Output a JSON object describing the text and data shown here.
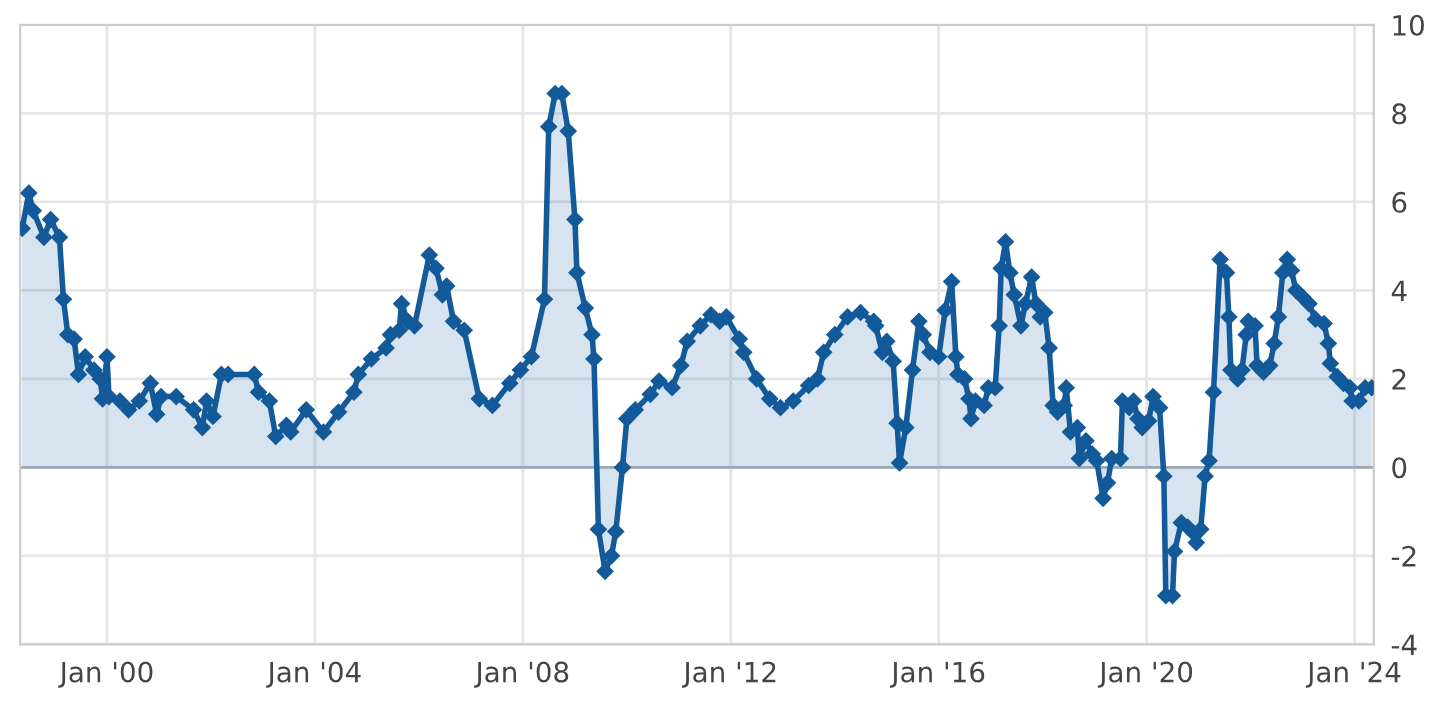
{
  "chart_data": {
    "type": "area",
    "marker": "diamond",
    "line_style": "solid",
    "grid": true,
    "xlim": [
      "1998-05-01",
      "2024-05-15"
    ],
    "ylim": [
      -4,
      10
    ],
    "xticks": [
      {
        "value": "2000-01-01",
        "label": "Jan '00"
      },
      {
        "value": "2004-01-01",
        "label": "Jan '04"
      },
      {
        "value": "2008-01-01",
        "label": "Jan '08"
      },
      {
        "value": "2012-01-01",
        "label": "Jan '12"
      },
      {
        "value": "2016-01-01",
        "label": "Jan '16"
      },
      {
        "value": "2020-01-01",
        "label": "Jan '20"
      },
      {
        "value": "2024-01-01",
        "label": "Jan '24"
      }
    ],
    "yticks": [
      -4,
      -2,
      0,
      2,
      4,
      6,
      8,
      10
    ],
    "ref_lines": [
      {
        "axis": "y",
        "value": 0,
        "color": "#9aa7b4"
      }
    ],
    "series": [
      {
        "color": "#135a9a",
        "x": [
          "1998-05-15",
          "1998-07-01",
          "1998-08-01",
          "1998-10-15",
          "1998-12-01",
          "1999-02-01",
          "1999-03-01",
          "1999-04-01",
          "1999-05-15",
          "1999-06-15",
          "1999-08-01",
          "1999-10-01",
          "1999-11-15",
          "1999-12-01",
          "2000-01-01",
          "2000-01-15",
          "2000-04-01",
          "2000-06-01",
          "2000-08-15",
          "2000-11-01",
          "2000-12-15",
          "2001-01-15",
          "2001-05-01",
          "2001-09-01",
          "2001-11-01",
          "2001-12-01",
          "2002-01-15",
          "2002-03-15",
          "2002-05-01",
          "2002-11-01",
          "2002-12-01",
          "2003-02-15",
          "2003-04-01",
          "2003-06-15",
          "2003-07-15",
          "2003-11-01",
          "2004-03-01",
          "2004-06-15",
          "2004-10-01",
          "2004-11-01",
          "2005-02-01",
          "2005-05-15",
          "2005-06-15",
          "2005-08-15",
          "2005-09-01",
          "2005-10-15",
          "2005-12-01",
          "2006-03-15",
          "2006-05-01",
          "2006-06-15",
          "2006-07-15",
          "2006-09-01",
          "2006-11-15",
          "2007-03-01",
          "2007-06-01",
          "2007-10-01",
          "2007-12-15",
          "2008-03-01",
          "2008-06-01",
          "2008-07-01",
          "2008-08-15",
          "2008-10-01",
          "2008-11-15",
          "2009-01-01",
          "2009-01-15",
          "2009-03-15",
          "2009-05-01",
          "2009-05-15",
          "2009-06-15",
          "2009-08-01",
          "2009-09-15",
          "2009-10-15",
          "2009-12-01",
          "2010-01-01",
          "2010-03-01",
          "2010-06-15",
          "2010-08-15",
          "2010-11-15",
          "2011-01-15",
          "2011-03-01",
          "2011-06-01",
          "2011-08-15",
          "2011-10-15",
          "2011-12-01",
          "2012-03-01",
          "2012-04-01",
          "2012-07-01",
          "2012-10-01",
          "2012-12-15",
          "2013-03-15",
          "2013-07-01",
          "2013-09-01",
          "2013-10-15",
          "2014-01-01",
          "2014-04-01",
          "2014-07-01",
          "2014-10-01",
          "2014-10-15",
          "2014-12-01",
          "2015-01-01",
          "2015-02-15",
          "2015-03-15",
          "2015-04-01",
          "2015-05-15",
          "2015-07-01",
          "2015-08-15",
          "2015-09-15",
          "2015-11-01",
          "2016-01-01",
          "2016-02-15",
          "2016-04-01",
          "2016-05-01",
          "2016-05-15",
          "2016-07-01",
          "2016-08-01",
          "2016-08-15",
          "2016-09-15",
          "2016-11-15",
          "2016-12-15",
          "2017-02-01",
          "2017-03-01",
          "2017-03-15",
          "2017-04-15",
          "2017-05-15",
          "2017-06-15",
          "2017-08-01",
          "2017-09-01",
          "2017-10-15",
          "2017-11-15",
          "2017-12-15",
          "2018-01-15",
          "2018-02-15",
          "2018-03-15",
          "2018-04-15",
          "2018-06-01",
          "2018-06-15",
          "2018-07-15",
          "2018-09-01",
          "2018-09-15",
          "2018-11-01",
          "2018-12-15",
          "2019-01-15",
          "2019-03-01",
          "2019-04-01",
          "2019-05-01",
          "2019-07-01",
          "2019-07-15",
          "2019-09-01",
          "2019-10-01",
          "2019-11-01",
          "2019-12-01",
          "2020-01-15",
          "2020-02-15",
          "2020-04-01",
          "2020-05-01",
          "2020-05-15",
          "2020-07-01",
          "2020-07-15",
          "2020-09-01",
          "2020-10-15",
          "2020-12-01",
          "2020-12-15",
          "2021-01-15",
          "2021-02-15",
          "2021-03-15",
          "2021-04-15",
          "2021-06-01",
          "2021-07-15",
          "2021-08-01",
          "2021-08-15",
          "2021-10-01",
          "2021-11-01",
          "2021-12-01",
          "2021-12-15",
          "2022-02-01",
          "2022-02-15",
          "2022-04-01",
          "2022-05-15",
          "2022-06-15",
          "2022-07-15",
          "2022-08-15",
          "2022-09-15",
          "2022-10-15",
          "2022-11-15",
          "2023-01-01",
          "2023-02-15",
          "2023-04-01",
          "2023-06-01",
          "2023-07-01",
          "2023-07-15",
          "2023-09-01",
          "2023-10-15",
          "2023-12-01",
          "2023-12-15",
          "2024-02-01",
          "2024-03-15",
          "2024-05-01"
        ],
        "values": [
          5.4,
          6.2,
          5.8,
          5.2,
          5.6,
          5.2,
          3.8,
          3.0,
          2.9,
          2.1,
          2.5,
          2.2,
          2.0,
          1.55,
          2.5,
          1.6,
          1.5,
          1.3,
          1.5,
          1.9,
          1.2,
          1.6,
          1.6,
          1.3,
          0.9,
          1.5,
          1.15,
          2.1,
          2.1,
          2.1,
          1.7,
          1.5,
          0.7,
          0.95,
          0.8,
          1.3,
          0.8,
          1.25,
          1.7,
          2.1,
          2.45,
          2.7,
          3.0,
          3.1,
          3.7,
          3.3,
          3.2,
          4.8,
          4.5,
          3.9,
          4.1,
          3.3,
          3.1,
          1.55,
          1.4,
          1.9,
          2.2,
          2.5,
          3.8,
          7.7,
          8.45,
          8.45,
          7.6,
          5.6,
          4.4,
          3.6,
          3.0,
          2.45,
          -1.4,
          -2.35,
          -2.0,
          -1.45,
          0,
          1.1,
          1.3,
          1.65,
          1.95,
          1.8,
          2.3,
          2.85,
          3.2,
          3.45,
          3.3,
          3.4,
          2.9,
          2.6,
          2.0,
          1.55,
          1.35,
          1.5,
          1.85,
          2.0,
          2.6,
          3.0,
          3.4,
          3.5,
          3.3,
          3.2,
          2.6,
          2.85,
          2.4,
          1.0,
          0.1,
          0.9,
          2.2,
          3.3,
          3.0,
          2.6,
          2.5,
          3.55,
          4.2,
          2.5,
          2.1,
          2.0,
          1.55,
          1.1,
          1.5,
          1.4,
          1.8,
          1.8,
          3.2,
          4.5,
          5.1,
          4.4,
          3.9,
          3.2,
          3.7,
          4.3,
          3.7,
          3.4,
          3.5,
          2.7,
          1.4,
          1.25,
          1.4,
          1.8,
          0.8,
          0.9,
          0.2,
          0.6,
          0.3,
          0.15,
          -0.7,
          -0.35,
          0.2,
          0.2,
          1.5,
          1.35,
          1.5,
          1.1,
          0.9,
          1.05,
          1.6,
          1.35,
          -0.2,
          -2.9,
          -2.9,
          -1.9,
          -1.25,
          -1.35,
          -1.5,
          -1.7,
          -1.4,
          -0.2,
          0.15,
          1.7,
          4.7,
          4.4,
          3.4,
          2.2,
          2.0,
          2.2,
          3.0,
          3.3,
          3.2,
          2.3,
          2.15,
          2.3,
          2.8,
          3.4,
          4.4,
          4.7,
          4.45,
          4.0,
          3.85,
          3.7,
          3.35,
          3.25,
          2.8,
          2.35,
          2.05,
          1.9,
          1.8,
          1.5,
          1.5,
          1.8,
          1.8
        ]
      }
    ]
  }
}
